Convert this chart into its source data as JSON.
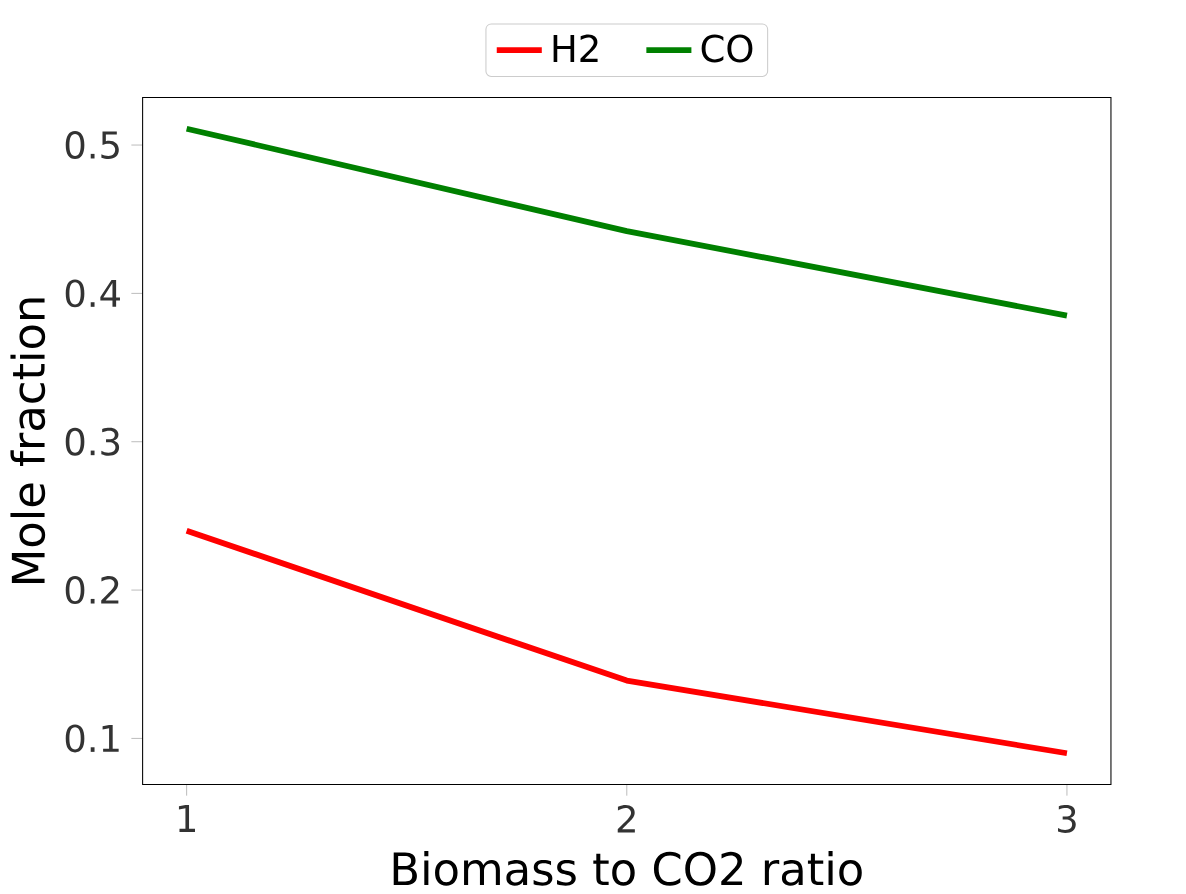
{
  "chart_data": {
    "type": "line",
    "xlabel": "Biomass to CO2 ratio",
    "ylabel": "Mole fraction",
    "x": [
      1,
      2,
      3
    ],
    "series": [
      {
        "name": "H2",
        "color": "#ff0000",
        "values": [
          0.24,
          0.139,
          0.09
        ]
      },
      {
        "name": "CO",
        "color": "#008000",
        "values": [
          0.511,
          0.442,
          0.385
        ]
      }
    ],
    "xlim": [
      0.9,
      3.1
    ],
    "ylim": [
      0.069,
      0.532
    ],
    "xticks": [
      1,
      2,
      3
    ],
    "yticks": [
      0.1,
      0.2,
      0.3,
      0.4,
      0.5
    ],
    "grid": false,
    "legend": "top",
    "marker": "none",
    "line_style": "solid"
  }
}
